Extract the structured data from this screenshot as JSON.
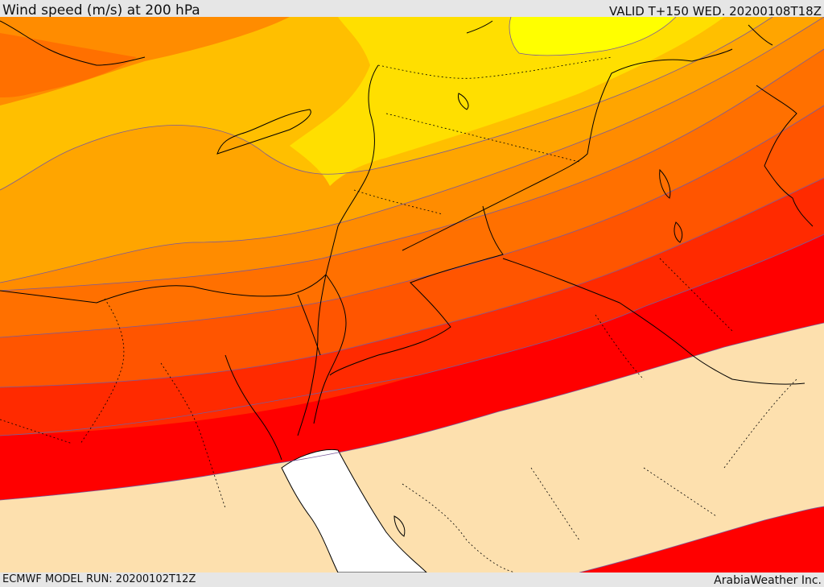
{
  "header": {
    "title": "Wind speed (m/s) at 200 hPa",
    "valid": "VALID T+150 WED. 20200108T18Z"
  },
  "footer": {
    "model_run": "ECMWF MODEL RUN: 20200102T12Z",
    "credit": "ArabiaWeather Inc."
  },
  "palette": {
    "wheat": "#fde0ae",
    "red": "#ff0000",
    "red_orange": "#ff2a00",
    "orange_red": "#ff5500",
    "dark_orange": "#ff7000",
    "orange": "#ff8c00",
    "amber": "#ffa500",
    "gold": "#ffbf00",
    "yellow_gold": "#ffdf00",
    "yellow": "#ffff00",
    "sea_gulf": "#ffffff",
    "contour_line": "#7a5a9a",
    "coastline": "#000000",
    "border_line": "#000000"
  }
}
